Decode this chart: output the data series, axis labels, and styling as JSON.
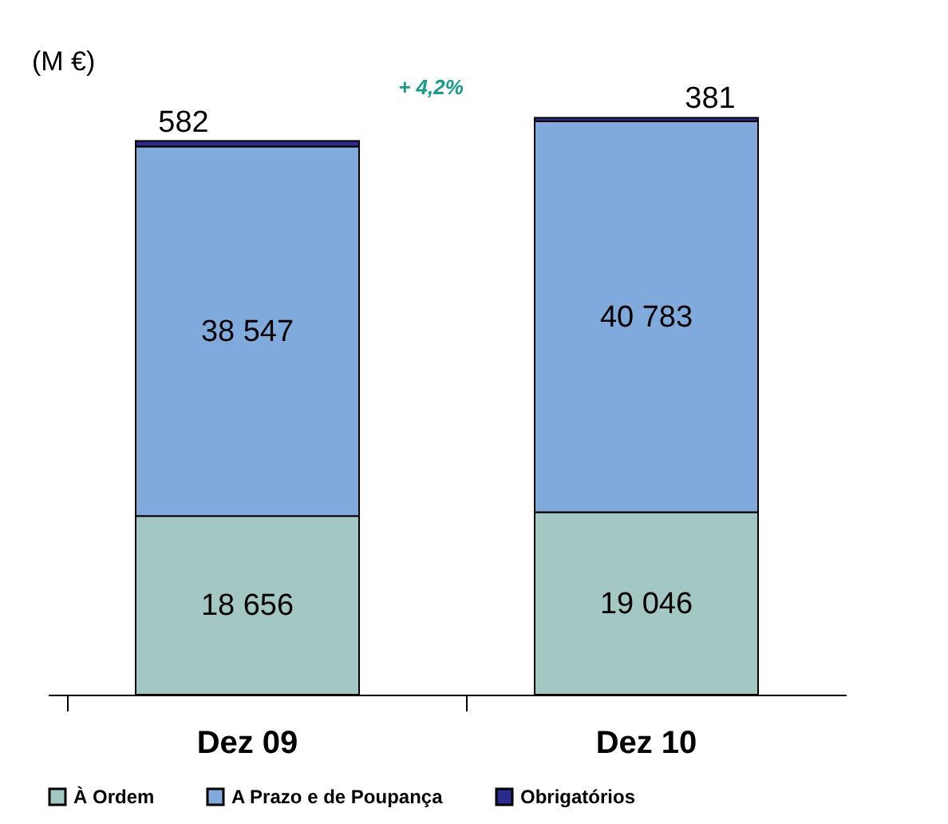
{
  "chart_data": {
    "type": "bar",
    "stacked": true,
    "ylabel": "(M €)",
    "categories": [
      "Dez 09",
      "Dez 10"
    ],
    "series": [
      {
        "name": "À Ordem",
        "color": "#a3c7c2",
        "values": [
          18656,
          19046
        ],
        "value_labels": [
          "18 656",
          "19 046"
        ]
      },
      {
        "name": "A Prazo e de Poupança",
        "color": "#7faadb",
        "values": [
          38547,
          40783
        ],
        "value_labels": [
          "38 547",
          "40 783"
        ]
      },
      {
        "name": "Obrigatórios",
        "color": "#2b2b8f",
        "values": [
          582,
          381
        ],
        "value_labels": [
          "582",
          "381"
        ]
      }
    ],
    "annotations": [
      "+ 4,2%"
    ],
    "legend": "bottom",
    "grid": false
  }
}
